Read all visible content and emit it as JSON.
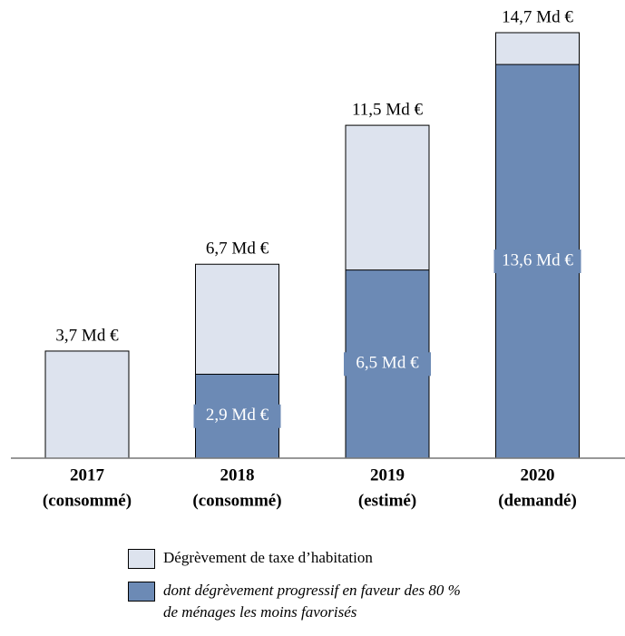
{
  "chart_data": {
    "type": "bar",
    "categories": [
      "2017",
      "2018",
      "2019",
      "2020"
    ],
    "category_sublabels": [
      "(consommé)",
      "(consommé)",
      "(estimé)",
      "(demandé)"
    ],
    "series": [
      {
        "name": "Dégrèvement de taxe d’habitation",
        "color": "#dde3ee",
        "values": [
          3.7,
          6.7,
          11.5,
          14.7
        ],
        "value_labels": [
          "3,7 Md €",
          "6,7 Md €",
          "11,5 Md €",
          "14,7 Md €"
        ]
      },
      {
        "name": "dont dégrèvement progressif en faveur des 80 % de ménages les moins favorisés",
        "color": "#6c8ab5",
        "values": [
          null,
          2.9,
          6.5,
          13.6
        ],
        "value_labels": [
          null,
          "2,9 Md €",
          "6,5 Md €",
          "13,6 Md €"
        ]
      }
    ]
  }
}
